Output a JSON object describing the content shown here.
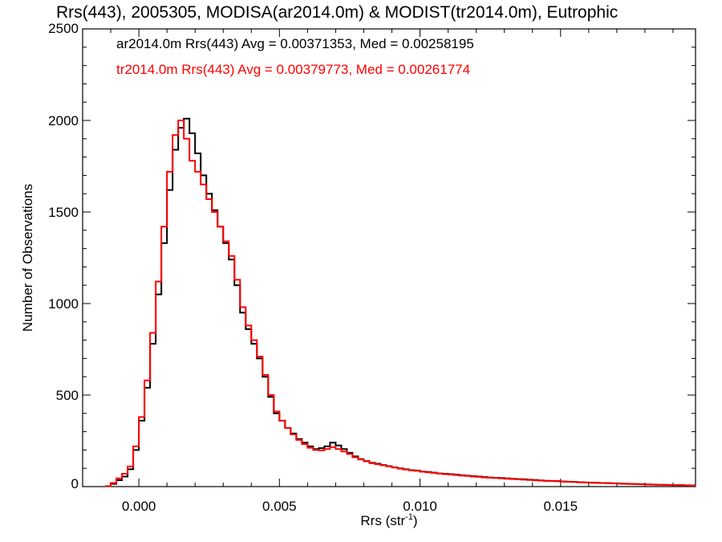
{
  "chart_data": {
    "type": "line",
    "title": "Rrs(443), 2005305, MODISA(ar2014.0m) & MODIST(tr2014.0m), Eutrophic",
    "xlabel": "Rrs (str",
    "xlabel_superscript": "-1",
    "xlabel_suffix": ")",
    "ylabel": "Number of Observations",
    "xlim": [
      -0.002,
      0.0198
    ],
    "ylim": [
      0,
      2500
    ],
    "xticks": [
      0.0,
      0.005,
      0.01,
      0.015
    ],
    "xtick_labels": [
      "0.000",
      "0.005",
      "0.010",
      "0.015"
    ],
    "yticks": [
      0,
      500,
      1000,
      1500,
      2000,
      2500
    ],
    "ytick_labels": [
      "0",
      "500",
      "1000",
      "1500",
      "2000",
      "2500"
    ],
    "grid": false,
    "legend_position": "top-left",
    "series": [
      {
        "name": "ar2014.0m Rrs(443) Avg = 0.00371353, Med = 0.00258195",
        "color": "#000000",
        "x": [
          -0.0011,
          -0.0009,
          -0.0007,
          -0.0005,
          -0.0003,
          -0.0001,
          0.0001,
          0.0003,
          0.0005,
          0.0007,
          0.0009,
          0.0011,
          0.0013,
          0.0015,
          0.0017,
          0.0019,
          0.0021,
          0.0023,
          0.0025,
          0.0027,
          0.0029,
          0.0031,
          0.0033,
          0.0035,
          0.0037,
          0.0039,
          0.0041,
          0.0043,
          0.0045,
          0.0047,
          0.0049,
          0.0051,
          0.0053,
          0.0055,
          0.0057,
          0.0059,
          0.0061,
          0.0063,
          0.0065,
          0.0067,
          0.0069,
          0.0071,
          0.0073,
          0.0075,
          0.0077,
          0.0079,
          0.0081,
          0.0083,
          0.0085,
          0.0087,
          0.0089,
          0.0091,
          0.0093,
          0.0095,
          0.0097,
          0.0099,
          0.0101,
          0.0103,
          0.0105,
          0.0107,
          0.0109,
          0.0111,
          0.0113,
          0.0115,
          0.0117,
          0.0119,
          0.0121,
          0.0123,
          0.0125,
          0.0127,
          0.0129,
          0.0131,
          0.0133,
          0.0135,
          0.0137,
          0.0139,
          0.0141,
          0.0143,
          0.0145,
          0.0147,
          0.0149,
          0.0151,
          0.0153,
          0.0155,
          0.0157,
          0.0159,
          0.0161,
          0.0163,
          0.0165,
          0.0167,
          0.0169,
          0.0171,
          0.0173,
          0.0175,
          0.0177,
          0.0179,
          0.0181,
          0.0183,
          0.0185,
          0.0187,
          0.0189,
          0.0191,
          0.0193,
          0.0195,
          0.0197
        ],
        "values": [
          2,
          15,
          35,
          55,
          95,
          200,
          360,
          540,
          780,
          1050,
          1330,
          1620,
          1840,
          1960,
          2010,
          1930,
          1820,
          1700,
          1600,
          1510,
          1420,
          1330,
          1240,
          1100,
          950,
          860,
          780,
          700,
          600,
          490,
          400,
          360,
          320,
          290,
          260,
          240,
          220,
          205,
          210,
          220,
          240,
          225,
          205,
          185,
          165,
          150,
          140,
          130,
          125,
          118,
          112,
          105,
          100,
          95,
          90,
          88,
          82,
          80,
          76,
          72,
          70,
          68,
          65,
          62,
          60,
          57,
          55,
          52,
          50,
          48,
          47,
          45,
          43,
          41,
          40,
          38,
          36,
          34,
          32,
          31,
          30,
          28,
          27,
          26,
          24,
          23,
          22,
          21,
          20,
          19,
          18,
          17,
          16,
          15,
          14,
          13,
          12,
          11,
          10,
          10,
          9,
          8,
          8,
          7,
          6
        ]
      },
      {
        "name": "tr2014.0m Rrs(443) Avg = 0.00379773, Med = 0.00261774",
        "color": "#ff0000",
        "x": [
          -0.0011,
          -0.0009,
          -0.0007,
          -0.0005,
          -0.0003,
          -0.0001,
          0.0001,
          0.0003,
          0.0005,
          0.0007,
          0.0009,
          0.0011,
          0.0013,
          0.0015,
          0.0017,
          0.0019,
          0.0021,
          0.0023,
          0.0025,
          0.0027,
          0.0029,
          0.0031,
          0.0033,
          0.0035,
          0.0037,
          0.0039,
          0.0041,
          0.0043,
          0.0045,
          0.0047,
          0.0049,
          0.0051,
          0.0053,
          0.0055,
          0.0057,
          0.0059,
          0.0061,
          0.0063,
          0.0065,
          0.0067,
          0.0069,
          0.0071,
          0.0073,
          0.0075,
          0.0077,
          0.0079,
          0.0081,
          0.0083,
          0.0085,
          0.0087,
          0.0089,
          0.0091,
          0.0093,
          0.0095,
          0.0097,
          0.0099,
          0.0101,
          0.0103,
          0.0105,
          0.0107,
          0.0109,
          0.0111,
          0.0113,
          0.0115,
          0.0117,
          0.0119,
          0.0121,
          0.0123,
          0.0125,
          0.0127,
          0.0129,
          0.0131,
          0.0133,
          0.0135,
          0.0137,
          0.0139,
          0.0141,
          0.0143,
          0.0145,
          0.0147,
          0.0149,
          0.0151,
          0.0153,
          0.0155,
          0.0157,
          0.0159,
          0.0161,
          0.0163,
          0.0165,
          0.0167,
          0.0169,
          0.0171,
          0.0173,
          0.0175,
          0.0177,
          0.0179,
          0.0181,
          0.0183,
          0.0185,
          0.0187,
          0.0189,
          0.0191,
          0.0193,
          0.0195,
          0.0197
        ],
        "values": [
          3,
          20,
          45,
          70,
          110,
          220,
          380,
          580,
          840,
          1120,
          1420,
          1720,
          1920,
          2000,
          1900,
          1780,
          1720,
          1650,
          1570,
          1500,
          1420,
          1340,
          1260,
          1130,
          980,
          880,
          800,
          710,
          610,
          500,
          410,
          360,
          320,
          285,
          255,
          232,
          212,
          200,
          198,
          205,
          215,
          205,
          192,
          178,
          160,
          148,
          138,
          128,
          122,
          116,
          110,
          104,
          98,
          93,
          89,
          86,
          81,
          78,
          75,
          71,
          68,
          66,
          63,
          60,
          58,
          55,
          53,
          50,
          48,
          47,
          45,
          43,
          41,
          40,
          38,
          36,
          34,
          33,
          31,
          30,
          29,
          27,
          26,
          25,
          23,
          22,
          21,
          20,
          19,
          18,
          17,
          16,
          15,
          14,
          13,
          12,
          11,
          10,
          10,
          9,
          8,
          8,
          7,
          6,
          5
        ]
      }
    ]
  }
}
